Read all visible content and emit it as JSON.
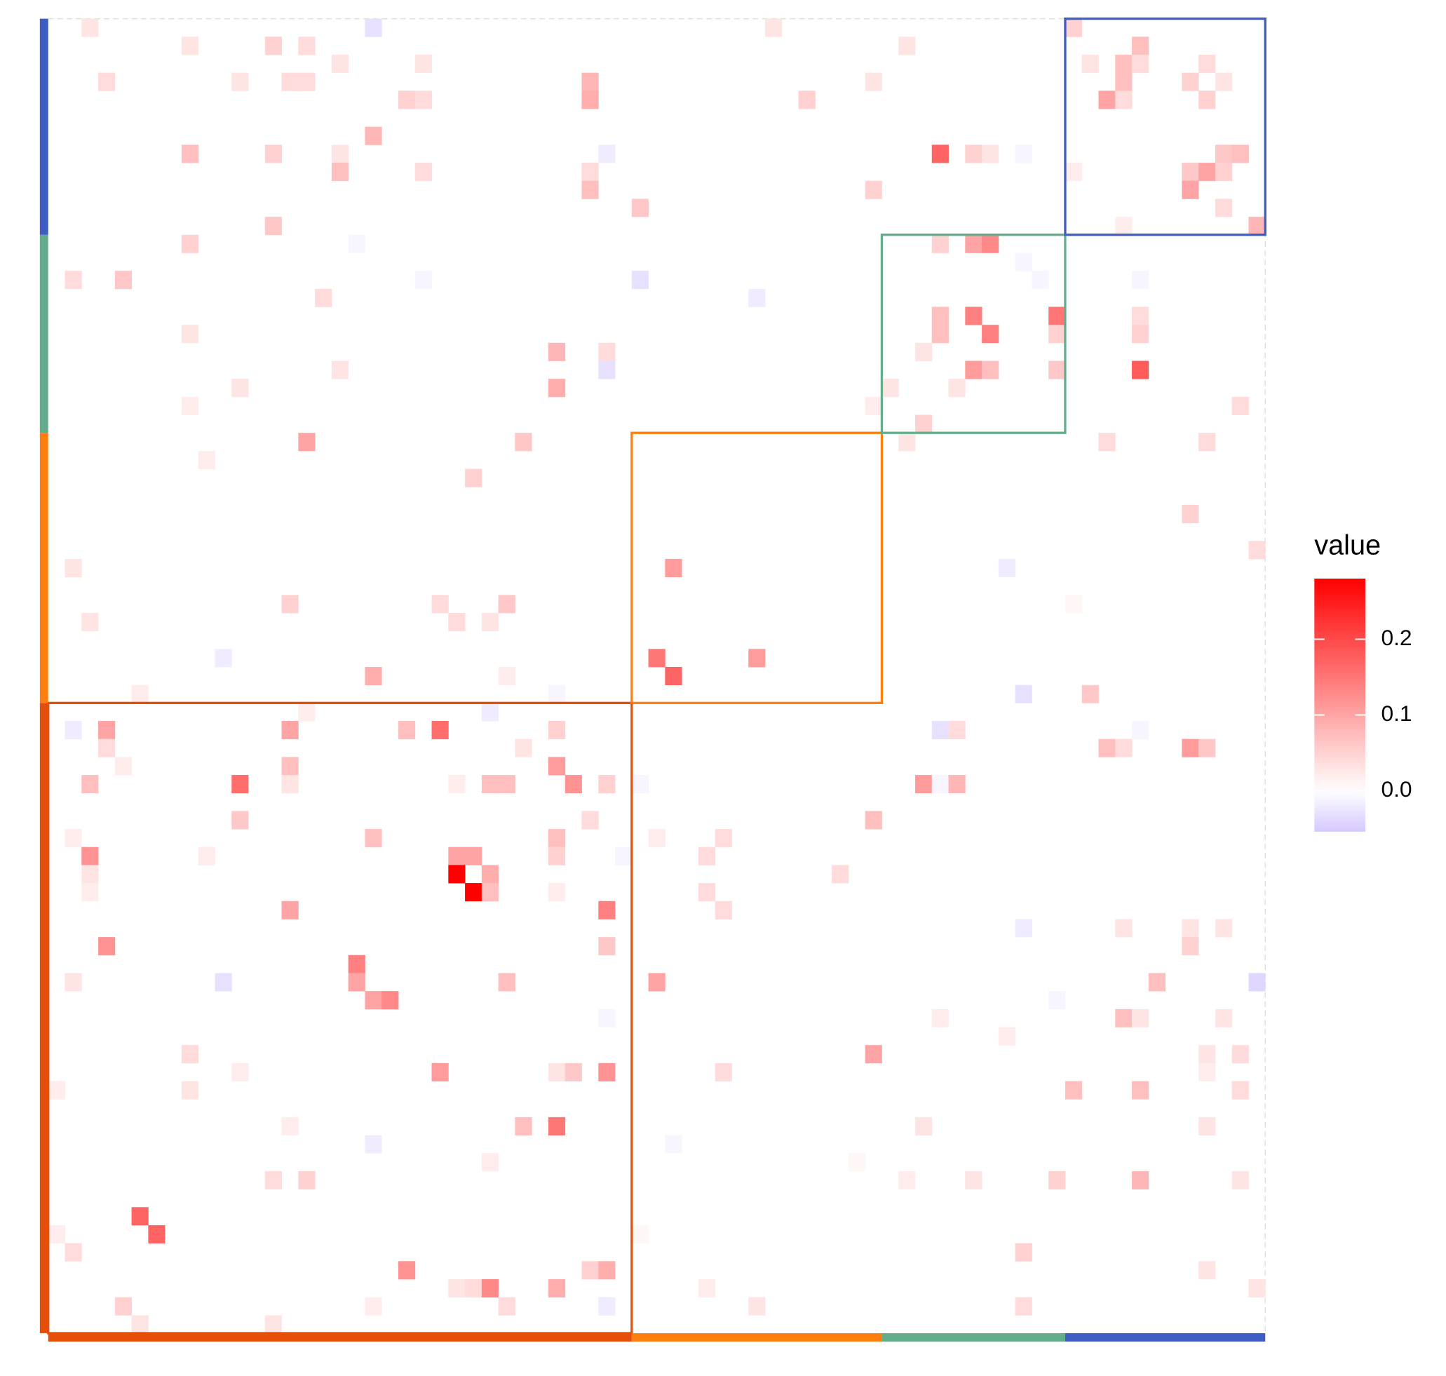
{
  "chart_data": {
    "type": "heatmap",
    "n": 73,
    "groups": [
      {
        "size": 35,
        "color": "#e64f0a"
      },
      {
        "size": 15,
        "color": "#ff7f0e"
      },
      {
        "size": 11,
        "color": "#63ad8a"
      },
      {
        "size": 12,
        "color": "#3f5bc4"
      }
    ],
    "low_color": "#d6c8ff",
    "mid_color": "#ffffff",
    "high_color": "#ff0000",
    "limits": [
      -0.054,
      0.28
    ],
    "legend_title": "value",
    "legend_ticks": [
      {
        "value": 0,
        "label": "0.0"
      },
      0.1,
      0.2
    ],
    "cells": [
      [
        0,
        2,
        0.03
      ],
      [
        0,
        19,
        -0.03
      ],
      [
        0,
        43,
        0.03
      ],
      [
        0,
        61,
        0.05
      ],
      [
        1,
        8,
        0.03
      ],
      [
        1,
        13,
        0.05
      ],
      [
        1,
        15,
        0.04
      ],
      [
        1,
        51,
        0.03
      ],
      [
        1,
        65,
        0.07
      ],
      [
        2,
        17,
        0.03
      ],
      [
        2,
        22,
        0.03
      ],
      [
        2,
        62,
        0.03
      ],
      [
        2,
        64,
        0.07
      ],
      [
        2,
        65,
        0.04
      ],
      [
        2,
        69,
        0.04
      ],
      [
        3,
        3,
        0.04
      ],
      [
        3,
        11,
        0.03
      ],
      [
        3,
        14,
        0.04
      ],
      [
        3,
        15,
        0.04
      ],
      [
        3,
        32,
        0.08
      ],
      [
        3,
        49,
        0.03
      ],
      [
        3,
        64,
        0.07
      ],
      [
        3,
        68,
        0.05
      ],
      [
        3,
        70,
        0.03
      ],
      [
        4,
        21,
        0.05
      ],
      [
        4,
        22,
        0.04
      ],
      [
        4,
        32,
        0.09
      ],
      [
        4,
        45,
        0.05
      ],
      [
        4,
        63,
        0.1
      ],
      [
        4,
        64,
        0.04
      ],
      [
        4,
        69,
        0.05
      ],
      [
        6,
        19,
        0.08
      ],
      [
        7,
        8,
        0.07
      ],
      [
        7,
        13,
        0.05
      ],
      [
        7,
        17,
        0.03
      ],
      [
        7,
        33,
        -0.02
      ],
      [
        7,
        53,
        0.17
      ],
      [
        7,
        55,
        0.05
      ],
      [
        7,
        56,
        0.03
      ],
      [
        7,
        58,
        -0.01
      ],
      [
        7,
        70,
        0.06
      ],
      [
        7,
        71,
        0.07
      ],
      [
        8,
        17,
        0.07
      ],
      [
        8,
        22,
        0.04
      ],
      [
        8,
        32,
        0.04
      ],
      [
        8,
        61,
        0.02
      ],
      [
        8,
        68,
        0.06
      ],
      [
        8,
        69,
        0.1
      ],
      [
        8,
        70,
        0.05
      ],
      [
        9,
        32,
        0.07
      ],
      [
        9,
        49,
        0.05
      ],
      [
        9,
        68,
        0.1
      ],
      [
        10,
        35,
        0.06
      ],
      [
        10,
        70,
        0.04
      ],
      [
        11,
        13,
        0.06
      ],
      [
        11,
        64,
        0.02
      ],
      [
        11,
        72,
        0.08
      ],
      [
        12,
        8,
        0.05
      ],
      [
        12,
        18,
        -0.01
      ],
      [
        12,
        53,
        0.05
      ],
      [
        12,
        55,
        0.1
      ],
      [
        12,
        56,
        0.13
      ],
      [
        13,
        58,
        -0.01
      ],
      [
        14,
        1,
        0.04
      ],
      [
        14,
        4,
        0.06
      ],
      [
        14,
        22,
        -0.01
      ],
      [
        14,
        35,
        -0.03
      ],
      [
        14,
        59,
        -0.01
      ],
      [
        14,
        65,
        -0.01
      ],
      [
        15,
        16,
        0.04
      ],
      [
        15,
        42,
        -0.02
      ],
      [
        16,
        53,
        0.07
      ],
      [
        16,
        55,
        0.14
      ],
      [
        16,
        60,
        0.15
      ],
      [
        16,
        65,
        0.04
      ],
      [
        17,
        8,
        0.03
      ],
      [
        17,
        53,
        0.07
      ],
      [
        17,
        56,
        0.14
      ],
      [
        17,
        60,
        0.05
      ],
      [
        17,
        65,
        0.05
      ],
      [
        18,
        30,
        0.08
      ],
      [
        18,
        33,
        0.04
      ],
      [
        18,
        52,
        0.03
      ],
      [
        19,
        17,
        0.03
      ],
      [
        19,
        33,
        -0.03
      ],
      [
        19,
        55,
        0.11
      ],
      [
        19,
        56,
        0.07
      ],
      [
        19,
        60,
        0.06
      ],
      [
        19,
        65,
        0.18
      ],
      [
        20,
        11,
        0.03
      ],
      [
        20,
        30,
        0.09
      ],
      [
        20,
        50,
        0.03
      ],
      [
        20,
        54,
        0.03
      ],
      [
        21,
        8,
        0.02
      ],
      [
        21,
        49,
        0.02
      ],
      [
        21,
        71,
        0.04
      ],
      [
        22,
        52,
        0.05
      ],
      [
        23,
        15,
        0.1
      ],
      [
        23,
        28,
        0.06
      ],
      [
        23,
        51,
        0.03
      ],
      [
        23,
        63,
        0.04
      ],
      [
        23,
        69,
        0.04
      ],
      [
        24,
        9,
        0.02
      ],
      [
        25,
        25,
        0.05
      ],
      [
        27,
        68,
        0.05
      ],
      [
        29,
        72,
        0.04
      ],
      [
        30,
        1,
        0.03
      ],
      [
        30,
        37,
        0.11
      ],
      [
        30,
        57,
        -0.02
      ],
      [
        32,
        14,
        0.05
      ],
      [
        32,
        23,
        0.04
      ],
      [
        32,
        27,
        0.06
      ],
      [
        32,
        61,
        0.01
      ],
      [
        33,
        2,
        0.03
      ],
      [
        33,
        24,
        0.04
      ],
      [
        33,
        26,
        0.03
      ],
      [
        35,
        10,
        -0.02
      ],
      [
        35,
        36,
        0.15
      ],
      [
        35,
        42,
        0.11
      ],
      [
        36,
        19,
        0.09
      ],
      [
        36,
        27,
        0.02
      ],
      [
        36,
        37,
        0.17
      ],
      [
        37,
        5,
        0.02
      ],
      [
        37,
        30,
        -0.01
      ],
      [
        37,
        58,
        -0.03
      ],
      [
        37,
        62,
        0.06
      ],
      [
        38,
        15,
        0.02
      ],
      [
        38,
        26,
        -0.02
      ],
      [
        39,
        1,
        -0.02
      ],
      [
        39,
        3,
        0.1
      ],
      [
        39,
        14,
        0.1
      ],
      [
        39,
        21,
        0.07
      ],
      [
        39,
        23,
        0.16
      ],
      [
        39,
        30,
        0.05
      ],
      [
        39,
        53,
        -0.03
      ],
      [
        39,
        54,
        0.04
      ],
      [
        39,
        65,
        -0.01
      ],
      [
        40,
        3,
        0.04
      ],
      [
        40,
        28,
        0.03
      ],
      [
        40,
        63,
        0.07
      ],
      [
        40,
        64,
        0.04
      ],
      [
        40,
        68,
        0.11
      ],
      [
        40,
        69,
        0.06
      ],
      [
        41,
        4,
        0.02
      ],
      [
        41,
        14,
        0.07
      ],
      [
        41,
        30,
        0.11
      ],
      [
        42,
        2,
        0.07
      ],
      [
        42,
        11,
        0.16
      ],
      [
        42,
        14,
        0.03
      ],
      [
        42,
        24,
        0.02
      ],
      [
        42,
        26,
        0.07
      ],
      [
        42,
        27,
        0.07
      ],
      [
        42,
        31,
        0.12
      ],
      [
        42,
        33,
        0.05
      ],
      [
        42,
        35,
        -0.01
      ],
      [
        42,
        52,
        0.11
      ],
      [
        42,
        53,
        -0.01
      ],
      [
        42,
        54,
        0.08
      ],
      [
        44,
        11,
        0.06
      ],
      [
        44,
        32,
        0.04
      ],
      [
        44,
        49,
        0.07
      ],
      [
        45,
        1,
        0.02
      ],
      [
        45,
        19,
        0.07
      ],
      [
        45,
        30,
        0.07
      ],
      [
        45,
        36,
        0.02
      ],
      [
        45,
        40,
        0.04
      ],
      [
        46,
        2,
        0.12
      ],
      [
        46,
        9,
        0.02
      ],
      [
        46,
        24,
        0.1
      ],
      [
        46,
        25,
        0.1
      ],
      [
        46,
        30,
        0.05
      ],
      [
        46,
        34,
        -0.01
      ],
      [
        46,
        39,
        0.04
      ],
      [
        47,
        2,
        0.03
      ],
      [
        47,
        24,
        0.28
      ],
      [
        47,
        26,
        0.09
      ],
      [
        47,
        47,
        0.04
      ],
      [
        48,
        2,
        0.02
      ],
      [
        48,
        25,
        0.28
      ],
      [
        48,
        26,
        0.07
      ],
      [
        48,
        30,
        0.02
      ],
      [
        48,
        39,
        0.04
      ],
      [
        49,
        14,
        0.1
      ],
      [
        49,
        33,
        0.14
      ],
      [
        49,
        40,
        0.04
      ],
      [
        50,
        58,
        -0.02
      ],
      [
        50,
        64,
        0.03
      ],
      [
        50,
        68,
        0.03
      ],
      [
        50,
        70,
        0.03
      ],
      [
        51,
        3,
        0.12
      ],
      [
        51,
        33,
        0.06
      ],
      [
        51,
        68,
        0.05
      ],
      [
        52,
        18,
        0.14
      ],
      [
        53,
        1,
        0.03
      ],
      [
        53,
        10,
        -0.03
      ],
      [
        53,
        18,
        0.1
      ],
      [
        53,
        27,
        0.07
      ],
      [
        53,
        36,
        0.1
      ],
      [
        53,
        66,
        0.07
      ],
      [
        53,
        72,
        -0.04
      ],
      [
        54,
        19,
        0.1
      ],
      [
        54,
        20,
        0.13
      ],
      [
        54,
        60,
        -0.01
      ],
      [
        55,
        33,
        -0.01
      ],
      [
        55,
        53,
        0.02
      ],
      [
        55,
        64,
        0.07
      ],
      [
        55,
        65,
        0.03
      ],
      [
        55,
        70,
        0.03
      ],
      [
        56,
        57,
        0.02
      ],
      [
        57,
        8,
        0.04
      ],
      [
        57,
        49,
        0.1
      ],
      [
        57,
        69,
        0.03
      ],
      [
        57,
        71,
        0.04
      ],
      [
        58,
        11,
        0.02
      ],
      [
        58,
        23,
        0.11
      ],
      [
        58,
        30,
        0.03
      ],
      [
        58,
        31,
        0.06
      ],
      [
        58,
        33,
        0.12
      ],
      [
        58,
        40,
        0.04
      ],
      [
        58,
        69,
        0.02
      ],
      [
        59,
        0,
        0.02
      ],
      [
        59,
        8,
        0.03
      ],
      [
        59,
        61,
        0.07
      ],
      [
        59,
        65,
        0.07
      ],
      [
        59,
        71,
        0.04
      ],
      [
        61,
        14,
        0.02
      ],
      [
        61,
        28,
        0.07
      ],
      [
        61,
        30,
        0.15
      ],
      [
        61,
        52,
        0.03
      ],
      [
        61,
        69,
        0.03
      ],
      [
        62,
        19,
        -0.02
      ],
      [
        62,
        37,
        -0.01
      ],
      [
        63,
        26,
        0.02
      ],
      [
        63,
        48,
        0.01
      ],
      [
        64,
        13,
        0.04
      ],
      [
        64,
        15,
        0.05
      ],
      [
        64,
        51,
        0.02
      ],
      [
        64,
        55,
        0.03
      ],
      [
        64,
        60,
        0.05
      ],
      [
        64,
        65,
        0.08
      ],
      [
        64,
        71,
        0.03
      ],
      [
        66,
        5,
        0.17
      ],
      [
        67,
        0,
        0.02
      ],
      [
        67,
        6,
        0.17
      ],
      [
        67,
        35,
        0.01
      ],
      [
        68,
        1,
        0.04
      ],
      [
        68,
        58,
        0.05
      ],
      [
        69,
        21,
        0.12
      ],
      [
        69,
        32,
        0.05
      ],
      [
        69,
        33,
        0.09
      ],
      [
        69,
        69,
        0.03
      ],
      [
        70,
        24,
        0.03
      ],
      [
        70,
        25,
        0.04
      ],
      [
        70,
        26,
        0.13
      ],
      [
        70,
        30,
        0.09
      ],
      [
        70,
        39,
        0.02
      ],
      [
        70,
        72,
        0.03
      ],
      [
        71,
        4,
        0.05
      ],
      [
        71,
        19,
        0.02
      ],
      [
        71,
        27,
        0.04
      ],
      [
        71,
        33,
        -0.02
      ],
      [
        71,
        42,
        0.03
      ],
      [
        71,
        58,
        0.04
      ],
      [
        72,
        5,
        0.03
      ],
      [
        72,
        13,
        0.03
      ]
    ]
  }
}
